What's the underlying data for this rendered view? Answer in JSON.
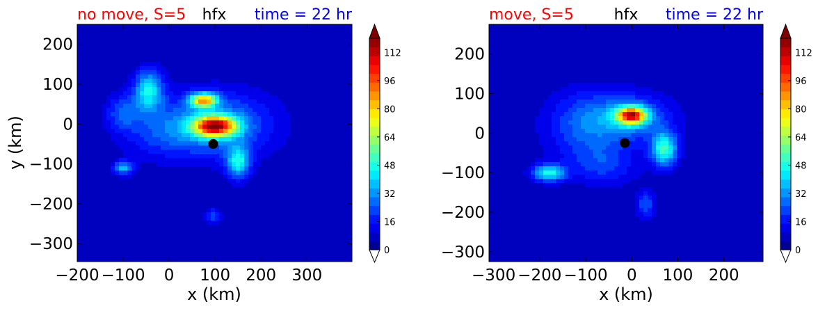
{
  "chart_data": [
    {
      "type": "heatmap",
      "title_left": "no move, S=5",
      "title_center": "hfx",
      "title_right": "time = 22 hr",
      "title_left_color": "#ff0000",
      "title_center_color": "#000000",
      "title_right_color": "#0000ff",
      "xlabel": "x (km)",
      "ylabel": "y (km)",
      "xlim": [
        -200,
        398
      ],
      "ylim": [
        -345,
        250
      ],
      "xticks": [
        -200,
        -100,
        0,
        100,
        200,
        300
      ],
      "yticks": [
        200,
        100,
        0,
        -100,
        -200,
        -300
      ],
      "grid": false,
      "storm_center": {
        "x": 96,
        "y": -50
      },
      "field_blobs": [
        {
          "x": 100,
          "y": 0,
          "sx": 85,
          "sy": 55,
          "v": 28
        },
        {
          "x": 100,
          "y": -5,
          "sx": 32,
          "sy": 18,
          "v": 90
        },
        {
          "x": 75,
          "y": 60,
          "sx": 20,
          "sy": 12,
          "v": 70
        },
        {
          "x": 150,
          "y": -95,
          "sx": 18,
          "sy": 28,
          "v": 38
        },
        {
          "x": -45,
          "y": 85,
          "sx": 22,
          "sy": 35,
          "v": 38
        },
        {
          "x": -100,
          "y": 30,
          "sx": 25,
          "sy": 30,
          "v": 18
        },
        {
          "x": -100,
          "y": -110,
          "sx": 15,
          "sy": 12,
          "v": 30
        },
        {
          "x": 95,
          "y": -230,
          "sx": 12,
          "sy": 12,
          "v": 18
        },
        {
          "x": -20,
          "y": -20,
          "sx": 60,
          "sy": 45,
          "v": 12
        }
      ],
      "background_level": 6,
      "colorbar": {
        "ticks": [
          0,
          16,
          32,
          48,
          64,
          80,
          96,
          112
        ],
        "min": 0,
        "max": 120,
        "extend": "both",
        "upper_extend_color": "#800000",
        "lower_extend_color": "#ffffff"
      }
    },
    {
      "type": "heatmap",
      "title_left": "move, S=5",
      "title_center": "hfx",
      "title_right": "time = 22 hr",
      "title_left_color": "#ff0000",
      "title_center_color": "#000000",
      "title_right_color": "#0000ff",
      "xlabel": "x (km)",
      "ylabel": "",
      "xlim": [
        -310,
        285
      ],
      "ylim": [
        -325,
        275
      ],
      "xticks": [
        -300,
        -200,
        -100,
        0,
        100,
        200
      ],
      "yticks": [
        200,
        100,
        0,
        -100,
        -200,
        -300
      ],
      "grid": false,
      "storm_center": {
        "x": -15,
        "y": -25
      },
      "field_blobs": [
        {
          "x": 0,
          "y": 40,
          "sx": 60,
          "sy": 40,
          "v": 24
        },
        {
          "x": 0,
          "y": 45,
          "sx": 22,
          "sy": 15,
          "v": 85
        },
        {
          "x": 70,
          "y": -40,
          "sx": 20,
          "sy": 30,
          "v": 45
        },
        {
          "x": -180,
          "y": -100,
          "sx": 25,
          "sy": 15,
          "v": 40
        },
        {
          "x": -100,
          "y": 20,
          "sx": 60,
          "sy": 60,
          "v": 20
        },
        {
          "x": 30,
          "y": -180,
          "sx": 15,
          "sy": 25,
          "v": 18
        },
        {
          "x": -60,
          "y": -80,
          "sx": 50,
          "sy": 35,
          "v": 14
        }
      ],
      "background_level": 6,
      "colorbar": {
        "ticks": [
          0,
          16,
          32,
          48,
          64,
          80,
          96,
          112
        ],
        "min": 0,
        "max": 120,
        "extend": "both",
        "upper_extend_color": "#800000",
        "lower_extend_color": "#ffffff"
      }
    }
  ]
}
